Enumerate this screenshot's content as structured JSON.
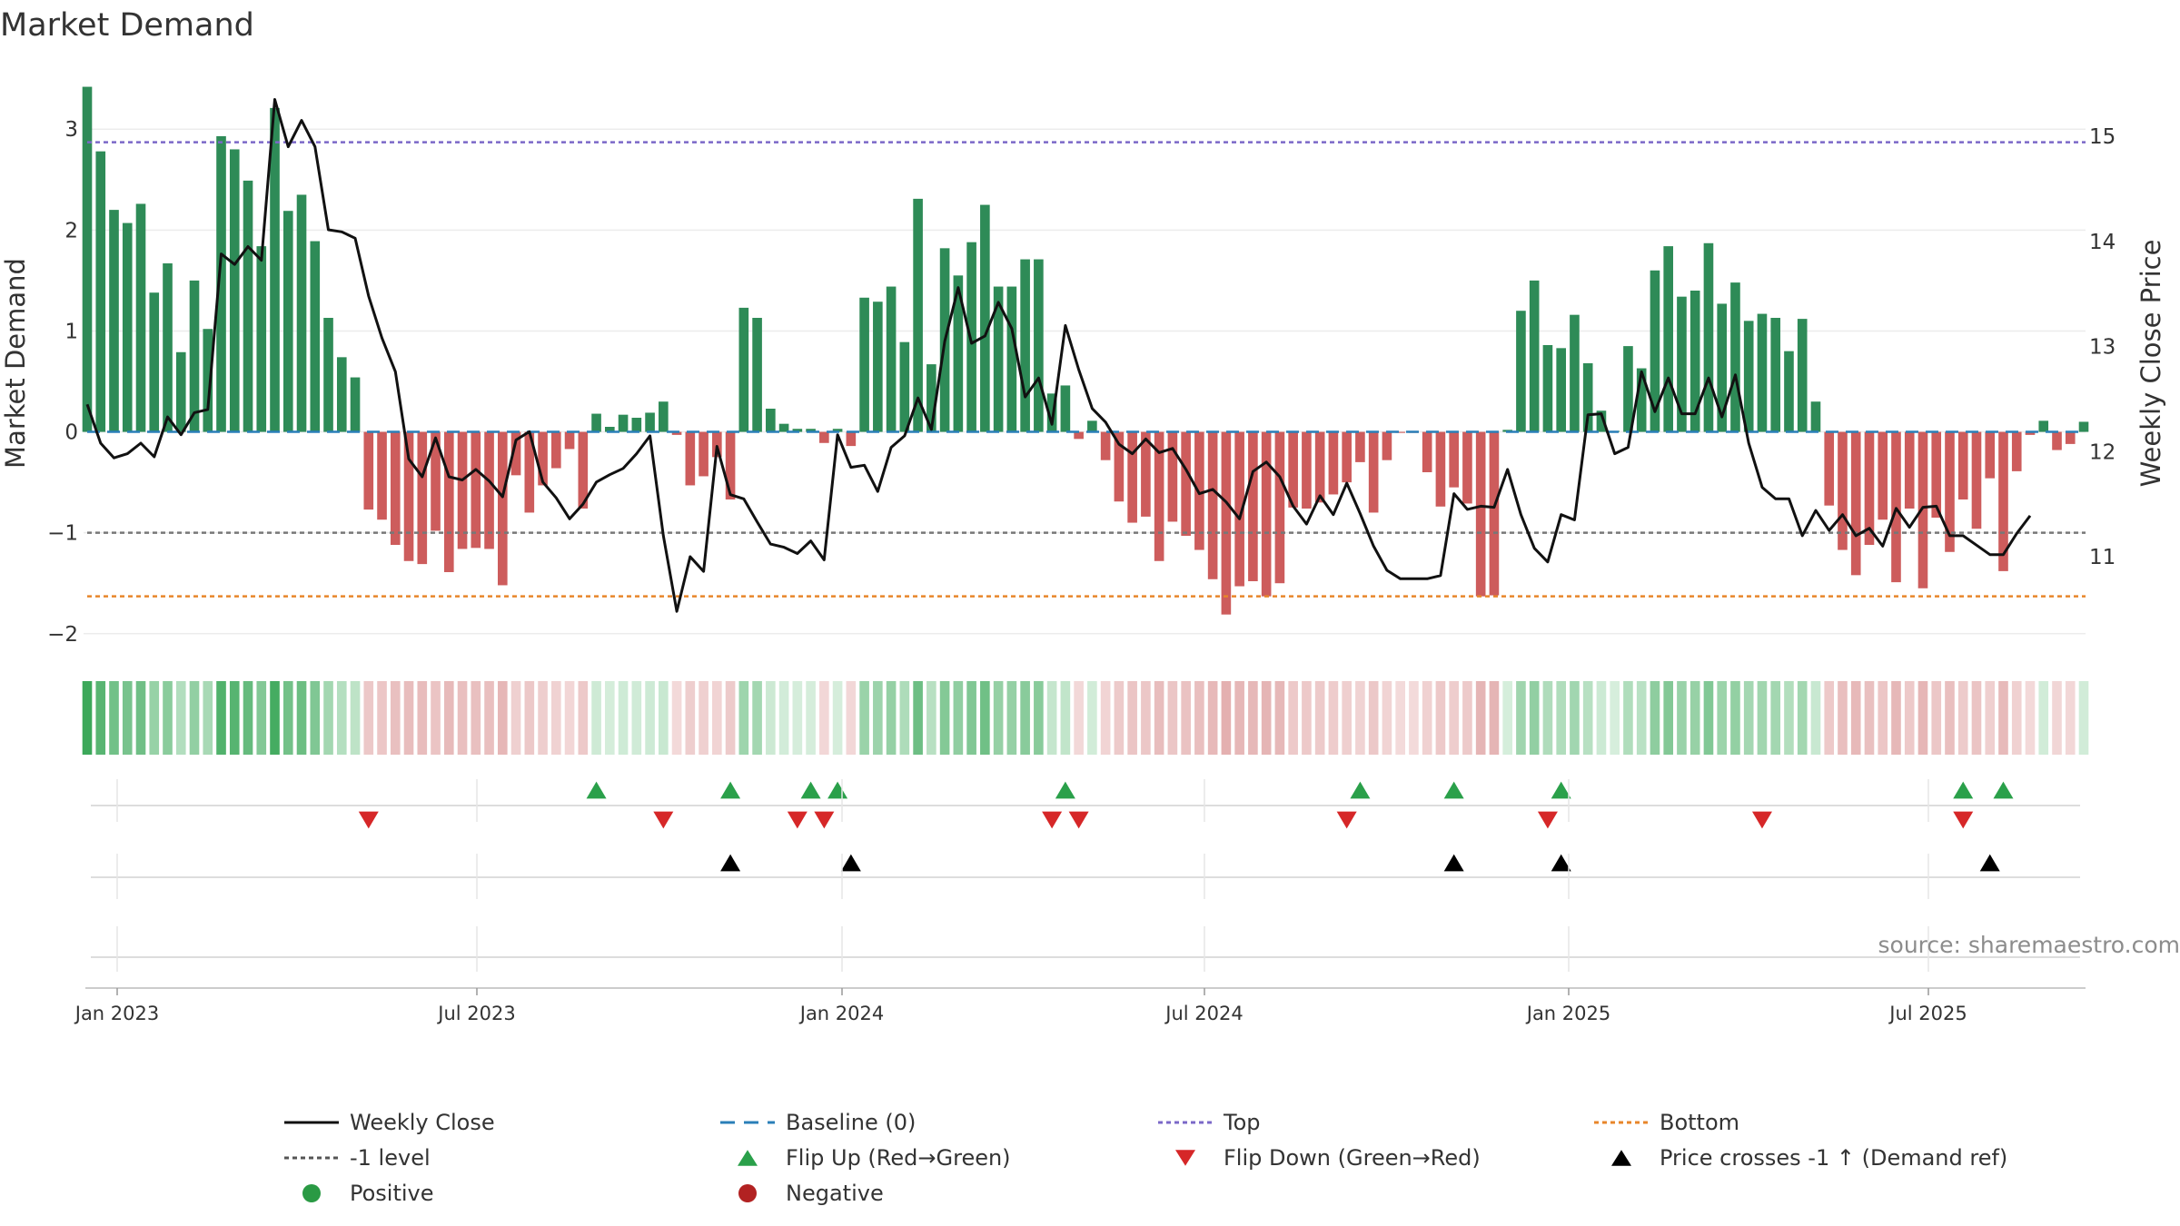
{
  "chart_data": {
    "type": "bar",
    "title": "Market Demand",
    "ylabel": "Market Demand",
    "y2label": "Weekly Close Price",
    "ylim": [
      -2.2,
      3.65
    ],
    "y2lim": [
      10.1,
      15.5
    ],
    "yticks": [
      "3",
      "2",
      "1",
      "0",
      "−1",
      "−2"
    ],
    "y2ticks": [
      "15",
      "14",
      "13",
      "12",
      "11"
    ],
    "xticks": [
      "Jan 2023",
      "Jul 2023",
      "Jan 2024",
      "Jul 2024",
      "Jan 2025",
      "Jul 2025"
    ],
    "reference_lines": {
      "top": 2.87,
      "minus_one": -1.0,
      "bottom": -1.63,
      "baseline": 0
    },
    "source": "source: sharemaestro.com",
    "colors": {
      "positive": "#2e8b57",
      "negative": "#cd5c5c",
      "price": "#111111",
      "top": "#7b68c8",
      "bottom": "#e8862a",
      "baseline": "#2a7fb8",
      "level": "#777777",
      "flip_up": "#2aa04a",
      "flip_down": "#d62728",
      "cross": "#000000"
    },
    "demand": [
      3.42,
      2.78,
      2.2,
      2.07,
      2.26,
      1.38,
      1.67,
      0.79,
      1.5,
      1.02,
      2.93,
      2.8,
      2.49,
      1.84,
      3.21,
      2.19,
      2.35,
      1.89,
      1.13,
      0.74,
      0.54,
      -0.77,
      -0.87,
      -1.12,
      -1.28,
      -1.31,
      -0.98,
      -1.39,
      -1.16,
      -1.15,
      -1.16,
      -1.52,
      -0.43,
      -0.8,
      -0.53,
      -0.36,
      -0.17,
      -0.76,
      0.18,
      0.05,
      0.17,
      0.14,
      0.19,
      0.3,
      -0.03,
      -0.53,
      -0.44,
      -0.25,
      -0.67,
      1.23,
      1.13,
      0.23,
      0.08,
      0.03,
      0.03,
      -0.11,
      0.03,
      -0.14,
      1.33,
      1.29,
      1.44,
      0.89,
      2.31,
      0.67,
      1.82,
      1.55,
      1.88,
      2.25,
      1.44,
      1.44,
      1.71,
      1.71,
      0.38,
      0.46,
      -0.07,
      0.11,
      -0.28,
      -0.69,
      -0.9,
      -0.84,
      -1.28,
      -0.89,
      -1.03,
      -1.17,
      -1.46,
      -1.81,
      -1.53,
      -1.48,
      -1.63,
      -1.5,
      -0.75,
      -0.76,
      -0.7,
      -0.62,
      -0.5,
      -0.3,
      -0.8,
      -0.28,
      -0.01,
      -0.01,
      -0.4,
      -0.74,
      -0.55,
      -0.71,
      -1.63,
      -1.62,
      0.02,
      1.2,
      1.5,
      0.86,
      0.83,
      1.16,
      0.68,
      0.21,
      0.01,
      0.85,
      0.63,
      1.6,
      1.84,
      1.34,
      1.4,
      1.87,
      1.27,
      1.48,
      1.1,
      1.17,
      1.13,
      0.8,
      1.12,
      0.3,
      -0.73,
      -1.17,
      -1.42,
      -1.12,
      -0.87,
      -1.49,
      -0.76,
      -1.55,
      -0.85,
      -1.19,
      -0.67,
      -0.96,
      -0.46,
      -1.38,
      -0.39,
      -0.03,
      0.11,
      -0.18,
      -0.12,
      0.1
    ],
    "price": [
      12.45,
      12.08,
      11.94,
      11.98,
      12.08,
      11.95,
      12.33,
      12.16,
      12.37,
      12.4,
      13.88,
      13.78,
      13.95,
      13.82,
      15.35,
      14.9,
      15.15,
      14.9,
      14.11,
      14.09,
      14.03,
      13.48,
      13.08,
      12.76,
      11.93,
      11.76,
      12.13,
      11.76,
      11.73,
      11.83,
      11.72,
      11.57,
      12.11,
      12.19,
      11.71,
      11.56,
      11.36,
      11.5,
      11.71,
      11.78,
      11.84,
      11.98,
      12.15,
      11.2,
      10.48,
      11.0,
      10.86,
      12.05,
      11.59,
      11.55,
      11.33,
      11.12,
      11.09,
      11.03,
      11.15,
      10.97,
      12.16,
      11.85,
      11.87,
      11.62,
      12.04,
      12.15,
      12.51,
      12.21,
      13.05,
      13.56,
      13.03,
      13.1,
      13.42,
      13.17,
      12.52,
      12.7,
      12.26,
      13.2,
      12.78,
      12.41,
      12.28,
      12.07,
      11.98,
      12.12,
      11.99,
      12.03,
      11.83,
      11.6,
      11.64,
      11.52,
      11.36,
      11.81,
      11.9,
      11.76,
      11.48,
      11.31,
      11.58,
      11.4,
      11.7,
      11.41,
      11.1,
      10.87,
      10.79,
      10.79,
      10.79,
      10.82,
      11.6,
      11.45,
      11.48,
      11.47,
      11.83,
      11.4,
      11.08,
      10.95,
      11.4,
      11.35,
      12.35,
      12.36,
      11.98,
      12.04,
      12.76,
      12.38,
      12.7,
      12.36,
      12.36,
      12.7,
      12.33,
      12.73,
      12.08,
      11.66,
      11.55,
      11.55,
      11.2,
      11.44,
      11.25,
      11.4,
      11.2,
      11.27,
      11.1,
      11.46,
      11.28,
      11.47,
      11.48,
      11.2,
      11.2,
      11.11,
      11.02,
      11.02,
      11.22,
      11.39
    ],
    "flip_up": [
      38,
      48,
      54,
      56,
      73,
      95,
      102,
      110,
      140,
      143
    ],
    "flip_down": [
      21,
      43,
      53,
      55,
      72,
      74,
      94,
      109,
      125,
      140
    ],
    "price_cross": [
      48,
      57,
      102,
      110,
      142
    ],
    "legend": [
      {
        "label": "Weekly Close",
        "kind": "line-solid",
        "color": "#111111"
      },
      {
        "label": "Baseline (0)",
        "kind": "line-dash",
        "color": "#2a7fb8"
      },
      {
        "label": "Top",
        "kind": "line-dot",
        "color": "#7b68c8"
      },
      {
        "label": "Bottom",
        "kind": "line-dot",
        "color": "#e8862a"
      },
      {
        "label": "-1 level",
        "kind": "line-dot",
        "color": "#555555"
      },
      {
        "label": "Flip Up (Red→Green)",
        "kind": "tri-up",
        "color": "#2aa04a"
      },
      {
        "label": "Flip Down (Green→Red)",
        "kind": "tri-down",
        "color": "#d62728"
      },
      {
        "label": "Price crosses -1 ↑ (Demand ref)",
        "kind": "tri-up",
        "color": "#000000"
      },
      {
        "label": "Positive",
        "kind": "dot",
        "color": "#2a9a44"
      },
      {
        "label": "Negative",
        "kind": "dot",
        "color": "#b22222"
      }
    ]
  }
}
